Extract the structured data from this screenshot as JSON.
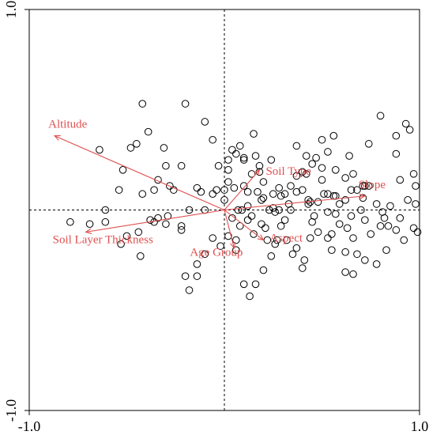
{
  "chart_data": {
    "type": "scatter",
    "title": "",
    "xlabel": "",
    "ylabel": "",
    "xlim": [
      -1.0,
      1.0
    ],
    "ylim": [
      -1.0,
      1.0
    ],
    "x_ticks": [
      {
        "value": -1.0,
        "label": "-1.0"
      },
      {
        "value": 1.0,
        "label": "1.0"
      }
    ],
    "y_ticks": [
      {
        "value": -1.0,
        "label": "-1.0"
      },
      {
        "value": 1.0,
        "label": "1.0"
      }
    ],
    "reference_lines": {
      "x": 0,
      "y": 0,
      "style": "dotted"
    },
    "grid": false,
    "arrow_color": "#e05050",
    "point_color": "#000000",
    "vectors": [
      {
        "label": "Altitude",
        "x": -0.87,
        "y": 0.37
      },
      {
        "label": "Soil Type",
        "x": 0.18,
        "y": 0.2
      },
      {
        "label": "Slope",
        "x": 0.72,
        "y": 0.07
      },
      {
        "label": "Soil Layer Thickness",
        "x": -0.71,
        "y": -0.11
      },
      {
        "label": "Age Group",
        "x": 0.05,
        "y": -0.19
      },
      {
        "label": "Aspect",
        "x": 0.2,
        "y": -0.15
      }
    ],
    "points": [
      [
        -0.64,
        0.3
      ],
      [
        -0.61,
        0.0
      ],
      [
        -0.69,
        -0.07
      ],
      [
        -0.42,
        0.08
      ],
      [
        -0.42,
        0.53
      ],
      [
        -0.2,
        0.53
      ],
      [
        -0.06,
        0.35
      ],
      [
        -0.45,
        0.33
      ],
      [
        -0.43,
        -0.23
      ],
      [
        -0.3,
        0.22
      ],
      [
        -0.22,
        0.22
      ],
      [
        -0.1,
        0.44
      ],
      [
        -0.03,
        0.22
      ],
      [
        -0.04,
        0.1
      ],
      [
        0.02,
        0.25
      ],
      [
        0.02,
        0.14
      ],
      [
        0.04,
        0.3
      ],
      [
        0.05,
        0.11
      ],
      [
        0.1,
        0.26
      ],
      [
        0.1,
        0.25
      ],
      [
        0.16,
        0.27
      ],
      [
        0.18,
        0.19
      ],
      [
        0.18,
        0.22
      ],
      [
        0.14,
        0.18
      ],
      [
        0.12,
        0.09
      ],
      [
        0.17,
        0.09
      ],
      [
        0.19,
        0.05
      ],
      [
        0.07,
        0.0
      ],
      [
        0.09,
        0.0
      ],
      [
        0.12,
        0.02
      ],
      [
        0.14,
        -0.03
      ],
      [
        0.19,
        -0.07
      ],
      [
        0.21,
        -0.09
      ],
      [
        0.23,
        0.0
      ],
      [
        0.25,
        0.01
      ],
      [
        0.26,
        -0.01
      ],
      [
        0.25,
        0.08
      ],
      [
        0.28,
        0.11
      ],
      [
        0.29,
        0.07
      ],
      [
        0.31,
        0.08
      ],
      [
        0.33,
        0.03
      ],
      [
        0.37,
        0.09
      ],
      [
        0.37,
        0.17
      ],
      [
        0.42,
        0.18
      ],
      [
        0.43,
        0.03
      ],
      [
        0.44,
        0.04
      ],
      [
        0.46,
        -0.03
      ],
      [
        0.5,
        0.21
      ],
      [
        0.5,
        0.15
      ],
      [
        0.51,
        0.08
      ],
      [
        0.53,
        0.08
      ],
      [
        0.56,
        0.07
      ],
      [
        0.59,
        0.03
      ],
      [
        0.62,
        0.05
      ],
      [
        0.65,
        -0.03
      ],
      [
        0.72,
        0.12
      ],
      [
        0.74,
        0.12
      ],
      [
        0.78,
        0.03
      ],
      [
        0.81,
        -0.01
      ],
      [
        0.85,
        0.02
      ],
      [
        0.9,
        0.15
      ],
      [
        0.88,
        0.28
      ],
      [
        0.93,
        0.43
      ],
      [
        0.95,
        0.4
      ],
      [
        0.97,
        0.18
      ],
      [
        0.98,
        0.12
      ],
      [
        0.98,
        0.03
      ],
      [
        0.99,
        -0.11
      ],
      [
        0.94,
        0.05
      ],
      [
        0.97,
        -0.09
      ],
      [
        0.92,
        -0.15
      ],
      [
        0.84,
        -0.08
      ],
      [
        0.82,
        -0.04
      ],
      [
        0.75,
        -0.12
      ],
      [
        0.72,
        -0.25
      ],
      [
        0.62,
        -0.31
      ],
      [
        0.55,
        -0.2
      ],
      [
        0.53,
        -0.14
      ],
      [
        0.48,
        -0.11
      ],
      [
        0.44,
        -0.14
      ],
      [
        0.41,
        -0.25
      ],
      [
        0.4,
        -0.29
      ],
      [
        0.37,
        -0.19
      ],
      [
        0.35,
        -0.22
      ],
      [
        0.32,
        -0.15
      ],
      [
        0.29,
        -0.08
      ],
      [
        0.27,
        -0.15
      ],
      [
        0.26,
        -0.17
      ],
      [
        0.24,
        -0.23
      ],
      [
        0.22,
        -0.15
      ],
      [
        0.2,
        -0.3
      ],
      [
        0.16,
        -0.37
      ],
      [
        0.13,
        -0.43
      ],
      [
        0.1,
        -0.37
      ],
      [
        0.06,
        -0.15
      ],
      [
        0.02,
        -0.13
      ],
      [
        -0.02,
        -0.18
      ],
      [
        -0.06,
        -0.14
      ],
      [
        -0.1,
        -0.22
      ],
      [
        -0.14,
        -0.27
      ],
      [
        -0.14,
        -0.33
      ],
      [
        -0.18,
        -0.4
      ],
      [
        -0.2,
        -0.33
      ],
      [
        -0.22,
        -0.08
      ],
      [
        -0.22,
        -0.1
      ],
      [
        -0.29,
        -0.03
      ],
      [
        -0.3,
        -0.07
      ],
      [
        -0.34,
        -0.04
      ],
      [
        -0.36,
        -0.06
      ],
      [
        -0.38,
        -0.05
      ],
      [
        -0.44,
        -0.11
      ],
      [
        -0.5,
        -0.13
      ],
      [
        -0.53,
        -0.17
      ],
      [
        -0.61,
        -0.06
      ],
      [
        -0.79,
        -0.06
      ],
      [
        -0.52,
        0.2
      ],
      [
        -0.54,
        0.1
      ],
      [
        -0.48,
        0.31
      ],
      [
        -0.39,
        0.39
      ],
      [
        -0.31,
        0.31
      ],
      [
        -0.28,
        0.12
      ],
      [
        -0.14,
        0.11
      ],
      [
        -0.12,
        0.09
      ],
      [
        -0.06,
        0.08
      ],
      [
        -0.1,
        0.0
      ],
      [
        -0.18,
        0.0
      ],
      [
        -0.26,
        0.1
      ],
      [
        -0.34,
        0.15
      ],
      [
        -0.36,
        0.1
      ],
      [
        0.0,
        0.1
      ],
      [
        0.0,
        0.05
      ],
      [
        0.02,
        0.2
      ],
      [
        0.04,
        -0.04
      ],
      [
        0.08,
        -0.08
      ],
      [
        0.06,
        -0.2
      ],
      [
        0.12,
        -0.05
      ],
      [
        0.15,
        -0.12
      ],
      [
        0.2,
        0.06
      ],
      [
        0.28,
        0.0
      ],
      [
        0.31,
        -0.05
      ],
      [
        0.34,
        0.0
      ],
      [
        0.4,
        0.1
      ],
      [
        0.43,
        0.05
      ],
      [
        0.37,
        0.32
      ],
      [
        0.42,
        0.27
      ],
      [
        0.57,
        0.2
      ],
      [
        0.57,
        0.07
      ],
      [
        0.62,
        0.16
      ],
      [
        0.65,
        0.1
      ],
      [
        0.66,
        0.18
      ],
      [
        0.68,
        0.1
      ],
      [
        0.71,
        0.06
      ],
      [
        0.68,
        -0.22
      ],
      [
        0.53,
        -0.01
      ],
      [
        0.48,
        0.04
      ],
      [
        0.45,
        -0.06
      ],
      [
        0.57,
        -0.02
      ],
      [
        0.59,
        -0.07
      ],
      [
        0.63,
        -0.09
      ],
      [
        0.7,
        0.0
      ],
      [
        0.55,
        -0.12
      ],
      [
        0.66,
        -0.14
      ],
      [
        0.83,
        -0.2
      ],
      [
        0.78,
        -0.27
      ],
      [
        0.66,
        -0.32
      ],
      [
        0.62,
        -0.21
      ],
      [
        0.72,
        -0.05
      ],
      [
        0.8,
        -0.08
      ],
      [
        0.88,
        -0.1
      ],
      [
        0.9,
        -0.04
      ],
      [
        0.71,
        0.12
      ],
      [
        0.74,
        0.33
      ],
      [
        0.8,
        0.47
      ],
      [
        0.88,
        0.37
      ],
      [
        0.56,
        0.37
      ],
      [
        0.64,
        0.27
      ],
      [
        0.47,
        0.26
      ],
      [
        0.53,
        0.29
      ],
      [
        0.45,
        0.23
      ],
      [
        0.4,
        0.19
      ],
      [
        0.5,
        0.35
      ],
      [
        0.34,
        0.12
      ],
      [
        0.24,
        0.25
      ],
      [
        0.2,
        0.14
      ],
      [
        0.1,
        0.12
      ],
      [
        0.15,
        0.38
      ],
      [
        0.08,
        0.32
      ],
      [
        0.06,
        0.28
      ]
    ]
  }
}
